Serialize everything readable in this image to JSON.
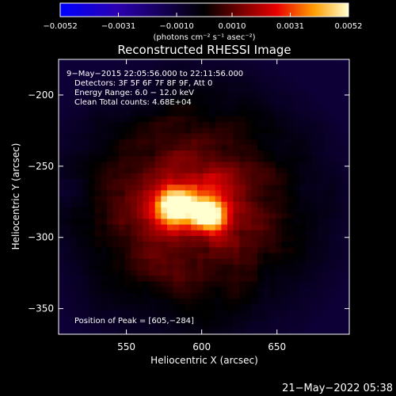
{
  "chart_data": {
    "type": "heatmap",
    "title": "Reconstructed RHESSI Image",
    "xlabel": "Heliocentric X (arcsec)",
    "ylabel": "Heliocentric Y (arcsec)",
    "xlim": [
      505,
      698
    ],
    "ylim": [
      -368,
      -175
    ],
    "x_ticks": [
      550,
      600,
      650
    ],
    "y_ticks": [
      -200,
      -250,
      -300,
      -350
    ],
    "colorbar": {
      "range": [
        -0.0052,
        0.0052
      ],
      "tick_values": [
        -0.0052,
        -0.0031,
        -0.001,
        0.001,
        0.0031,
        0.0052
      ],
      "tick_labels": [
        "−0.0052",
        "−0.0031",
        "−0.0010",
        "0.0010",
        "0.0031",
        "0.0052"
      ],
      "unit": "(photons cm⁻² s⁻¹ asec⁻²)"
    },
    "annotations": [
      "9−May−2015 22:05:56.000 to 22:11:56.000",
      "Detectors: 3F 5F 6F 7F 8F 9F, Att 0",
      "Energy Range: 6.0 − 12.0 keV",
      "Clean    Total counts: 4.68E+04"
    ],
    "peak_label": "Position of Peak = [605,−284]",
    "sources": [
      {
        "x": 583,
        "y": -278,
        "amp": 0.0052,
        "sigma": 9
      },
      {
        "x": 605,
        "y": -284,
        "amp": 0.005,
        "sigma": 8
      },
      {
        "x": 595,
        "y": -278,
        "amp": 0.0022,
        "sigma": 32
      }
    ],
    "timestamp": "21−May−2022 05:38"
  }
}
